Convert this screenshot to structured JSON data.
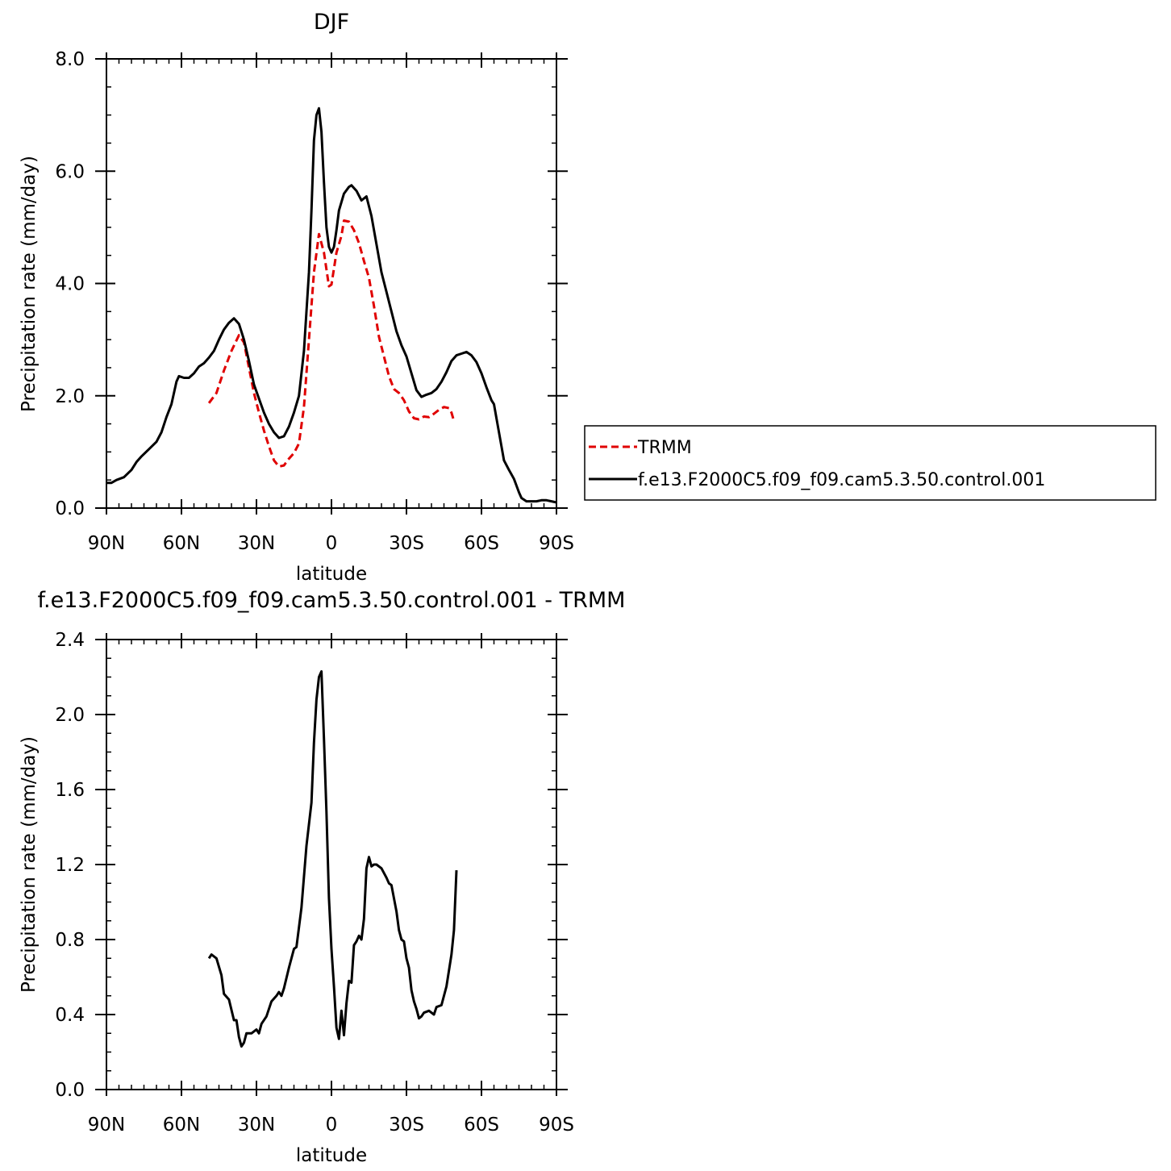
{
  "chart_data": [
    {
      "type": "line",
      "title": "DJF",
      "xlabel": "latitude",
      "ylabel": "Precipitation rate (mm/day)",
      "xlim": [
        -90,
        90
      ],
      "ylim": [
        0,
        8
      ],
      "x_tick_values": [
        -90,
        -60,
        -30,
        0,
        30,
        60,
        90
      ],
      "x_tick_labels": [
        "90N",
        "60N",
        "30N",
        "0",
        "30S",
        "60S",
        "90S"
      ],
      "y_tick_values": [
        0,
        2,
        4,
        6,
        8
      ],
      "y_tick_labels": [
        "0.0",
        "2.0",
        "4.0",
        "6.0",
        "8.0"
      ],
      "legend": {
        "position": "right",
        "entries": [
          "TRMM",
          "f.e13.F2000C5.f09_f09.cam5.3.50.control.001"
        ]
      },
      "series": [
        {
          "name": "TRMM",
          "color": "#e00000",
          "dash": true,
          "points": [
            [
              -49,
              1.87
            ],
            [
              -46,
              2.05
            ],
            [
              -43,
              2.45
            ],
            [
              -40,
              2.8
            ],
            [
              -37,
              3.08
            ],
            [
              -35,
              2.95
            ],
            [
              -33,
              2.5
            ],
            [
              -31,
              2.05
            ],
            [
              -29,
              1.7
            ],
            [
              -27,
              1.38
            ],
            [
              -25,
              1.1
            ],
            [
              -23,
              0.85
            ],
            [
              -21,
              0.74
            ],
            [
              -19,
              0.76
            ],
            [
              -17,
              0.88
            ],
            [
              -15,
              0.98
            ],
            [
              -13,
              1.15
            ],
            [
              -11,
              1.8
            ],
            [
              -9,
              3.0
            ],
            [
              -7,
              4.2
            ],
            [
              -5,
              4.88
            ],
            [
              -3,
              4.55
            ],
            [
              -1,
              3.95
            ],
            [
              0,
              3.98
            ],
            [
              2,
              4.55
            ],
            [
              4,
              4.85
            ],
            [
              5,
              5.12
            ],
            [
              7,
              5.1
            ],
            [
              9,
              4.95
            ],
            [
              11,
              4.72
            ],
            [
              13,
              4.4
            ],
            [
              15,
              4.1
            ],
            [
              17,
              3.6
            ],
            [
              19,
              3.05
            ],
            [
              21,
              2.7
            ],
            [
              23,
              2.35
            ],
            [
              25,
              2.12
            ],
            [
              27,
              2.05
            ],
            [
              29,
              1.92
            ],
            [
              31,
              1.72
            ],
            [
              33,
              1.6
            ],
            [
              35,
              1.58
            ],
            [
              37,
              1.63
            ],
            [
              39,
              1.62
            ],
            [
              41,
              1.68
            ],
            [
              43,
              1.75
            ],
            [
              45,
              1.8
            ],
            [
              47,
              1.78
            ],
            [
              48,
              1.7
            ],
            [
              49,
              1.55
            ]
          ]
        },
        {
          "name": "f.e13.F2000C5.f09_f09.cam5.3.50.control.001",
          "color": "#000000",
          "dash": false,
          "points": [
            [
              -90,
              0.45
            ],
            [
              -88,
              0.45
            ],
            [
              -86,
              0.5
            ],
            [
              -83,
              0.55
            ],
            [
              -80,
              0.68
            ],
            [
              -78,
              0.82
            ],
            [
              -76,
              0.92
            ],
            [
              -73,
              1.05
            ],
            [
              -70,
              1.18
            ],
            [
              -68,
              1.35
            ],
            [
              -66,
              1.62
            ],
            [
              -64,
              1.85
            ],
            [
              -62,
              2.25
            ],
            [
              -61,
              2.35
            ],
            [
              -59,
              2.32
            ],
            [
              -57,
              2.32
            ],
            [
              -55,
              2.4
            ],
            [
              -53,
              2.52
            ],
            [
              -51,
              2.58
            ],
            [
              -49,
              2.68
            ],
            [
              -47,
              2.8
            ],
            [
              -45,
              3.0
            ],
            [
              -43,
              3.18
            ],
            [
              -41,
              3.3
            ],
            [
              -39,
              3.38
            ],
            [
              -37,
              3.28
            ],
            [
              -35,
              3.0
            ],
            [
              -33,
              2.62
            ],
            [
              -31,
              2.2
            ],
            [
              -29,
              1.95
            ],
            [
              -27,
              1.7
            ],
            [
              -25,
              1.5
            ],
            [
              -23,
              1.35
            ],
            [
              -21,
              1.25
            ],
            [
              -19,
              1.28
            ],
            [
              -17,
              1.45
            ],
            [
              -15,
              1.7
            ],
            [
              -13,
              2.0
            ],
            [
              -11,
              2.8
            ],
            [
              -9,
              4.2
            ],
            [
              -8,
              5.3
            ],
            [
              -7,
              6.55
            ],
            [
              -6,
              7.0
            ],
            [
              -5,
              7.12
            ],
            [
              -4,
              6.7
            ],
            [
              -3,
              5.8
            ],
            [
              -2,
              5.0
            ],
            [
              -1,
              4.65
            ],
            [
              0,
              4.55
            ],
            [
              1,
              4.65
            ],
            [
              2,
              4.95
            ],
            [
              3,
              5.3
            ],
            [
              5,
              5.6
            ],
            [
              7,
              5.72
            ],
            [
              8,
              5.75
            ],
            [
              10,
              5.65
            ],
            [
              12,
              5.48
            ],
            [
              14,
              5.55
            ],
            [
              16,
              5.2
            ],
            [
              18,
              4.7
            ],
            [
              20,
              4.2
            ],
            [
              22,
              3.85
            ],
            [
              24,
              3.5
            ],
            [
              26,
              3.15
            ],
            [
              28,
              2.9
            ],
            [
              30,
              2.7
            ],
            [
              32,
              2.4
            ],
            [
              34,
              2.1
            ],
            [
              36,
              1.98
            ],
            [
              38,
              2.02
            ],
            [
              40,
              2.05
            ],
            [
              42,
              2.12
            ],
            [
              44,
              2.25
            ],
            [
              46,
              2.42
            ],
            [
              48,
              2.62
            ],
            [
              50,
              2.72
            ],
            [
              52,
              2.75
            ],
            [
              54,
              2.78
            ],
            [
              56,
              2.72
            ],
            [
              58,
              2.6
            ],
            [
              60,
              2.4
            ],
            [
              62,
              2.15
            ],
            [
              64,
              1.92
            ],
            [
              65,
              1.85
            ],
            [
              66,
              1.6
            ],
            [
              67,
              1.35
            ],
            [
              68,
              1.1
            ],
            [
              69,
              0.85
            ],
            [
              71,
              0.68
            ],
            [
              73,
              0.52
            ],
            [
              74,
              0.4
            ],
            [
              75,
              0.28
            ],
            [
              76,
              0.18
            ],
            [
              78,
              0.12
            ],
            [
              80,
              0.12
            ],
            [
              82,
              0.12
            ],
            [
              84,
              0.14
            ],
            [
              86,
              0.14
            ],
            [
              88,
              0.12
            ],
            [
              90,
              0.1
            ]
          ]
        }
      ]
    },
    {
      "type": "line",
      "title": "f.e13.F2000C5.f09_f09.cam5.3.50.control.001 - TRMM",
      "xlabel": "latitude",
      "ylabel": "Precipitation rate (mm/day)",
      "xlim": [
        -90,
        90
      ],
      "ylim": [
        0,
        2.4
      ],
      "x_tick_values": [
        -90,
        -60,
        -30,
        0,
        30,
        60,
        90
      ],
      "x_tick_labels": [
        "90N",
        "60N",
        "30N",
        "0",
        "30S",
        "60S",
        "90S"
      ],
      "y_tick_values": [
        0,
        0.4,
        0.8,
        1.2,
        1.6,
        2.0,
        2.4
      ],
      "y_tick_labels": [
        "0.0",
        "0.4",
        "0.8",
        "1.2",
        "1.6",
        "2.0",
        "2.4"
      ],
      "series": [
        {
          "name": "",
          "color": "#000000",
          "dash": false,
          "points": [
            [
              -49,
              0.7
            ],
            [
              -48,
              0.72
            ],
            [
              -46,
              0.7
            ],
            [
              -44,
              0.61
            ],
            [
              -43,
              0.51
            ],
            [
              -41,
              0.48
            ],
            [
              -39,
              0.37
            ],
            [
              -38,
              0.37
            ],
            [
              -37,
              0.28
            ],
            [
              -36,
              0.23
            ],
            [
              -35,
              0.25
            ],
            [
              -34,
              0.3
            ],
            [
              -32,
              0.3
            ],
            [
              -30,
              0.32
            ],
            [
              -29,
              0.3
            ],
            [
              -28,
              0.35
            ],
            [
              -26,
              0.39
            ],
            [
              -24,
              0.47
            ],
            [
              -22,
              0.5
            ],
            [
              -21,
              0.52
            ],
            [
              -20,
              0.5
            ],
            [
              -19,
              0.54
            ],
            [
              -17,
              0.65
            ],
            [
              -15,
              0.75
            ],
            [
              -14,
              0.76
            ],
            [
              -12,
              0.97
            ],
            [
              -10,
              1.3
            ],
            [
              -8,
              1.53
            ],
            [
              -7,
              1.85
            ],
            [
              -6,
              2.08
            ],
            [
              -5,
              2.2
            ],
            [
              -4,
              2.23
            ],
            [
              -3,
              1.87
            ],
            [
              -2,
              1.48
            ],
            [
              -1,
              1.02
            ],
            [
              0,
              0.75
            ],
            [
              1,
              0.55
            ],
            [
              2,
              0.33
            ],
            [
              3,
              0.27
            ],
            [
              4,
              0.42
            ],
            [
              5,
              0.29
            ],
            [
              6,
              0.46
            ],
            [
              7,
              0.58
            ],
            [
              8,
              0.57
            ],
            [
              9,
              0.77
            ],
            [
              10,
              0.79
            ],
            [
              11,
              0.82
            ],
            [
              12,
              0.8
            ],
            [
              13,
              0.91
            ],
            [
              14,
              1.18
            ],
            [
              15,
              1.24
            ],
            [
              16,
              1.19
            ],
            [
              17,
              1.2
            ],
            [
              18,
              1.2
            ],
            [
              20,
              1.18
            ],
            [
              22,
              1.13
            ],
            [
              23,
              1.1
            ],
            [
              24,
              1.09
            ],
            [
              26,
              0.95
            ],
            [
              27,
              0.85
            ],
            [
              28,
              0.8
            ],
            [
              29,
              0.79
            ],
            [
              30,
              0.7
            ],
            [
              31,
              0.65
            ],
            [
              32,
              0.53
            ],
            [
              33,
              0.47
            ],
            [
              34,
              0.43
            ],
            [
              35,
              0.38
            ],
            [
              36,
              0.39
            ],
            [
              37,
              0.41
            ],
            [
              39,
              0.42
            ],
            [
              41,
              0.4
            ],
            [
              42,
              0.44
            ],
            [
              44,
              0.45
            ],
            [
              46,
              0.55
            ],
            [
              48,
              0.72
            ],
            [
              49,
              0.85
            ],
            [
              50,
              1.17
            ]
          ]
        }
      ]
    }
  ]
}
